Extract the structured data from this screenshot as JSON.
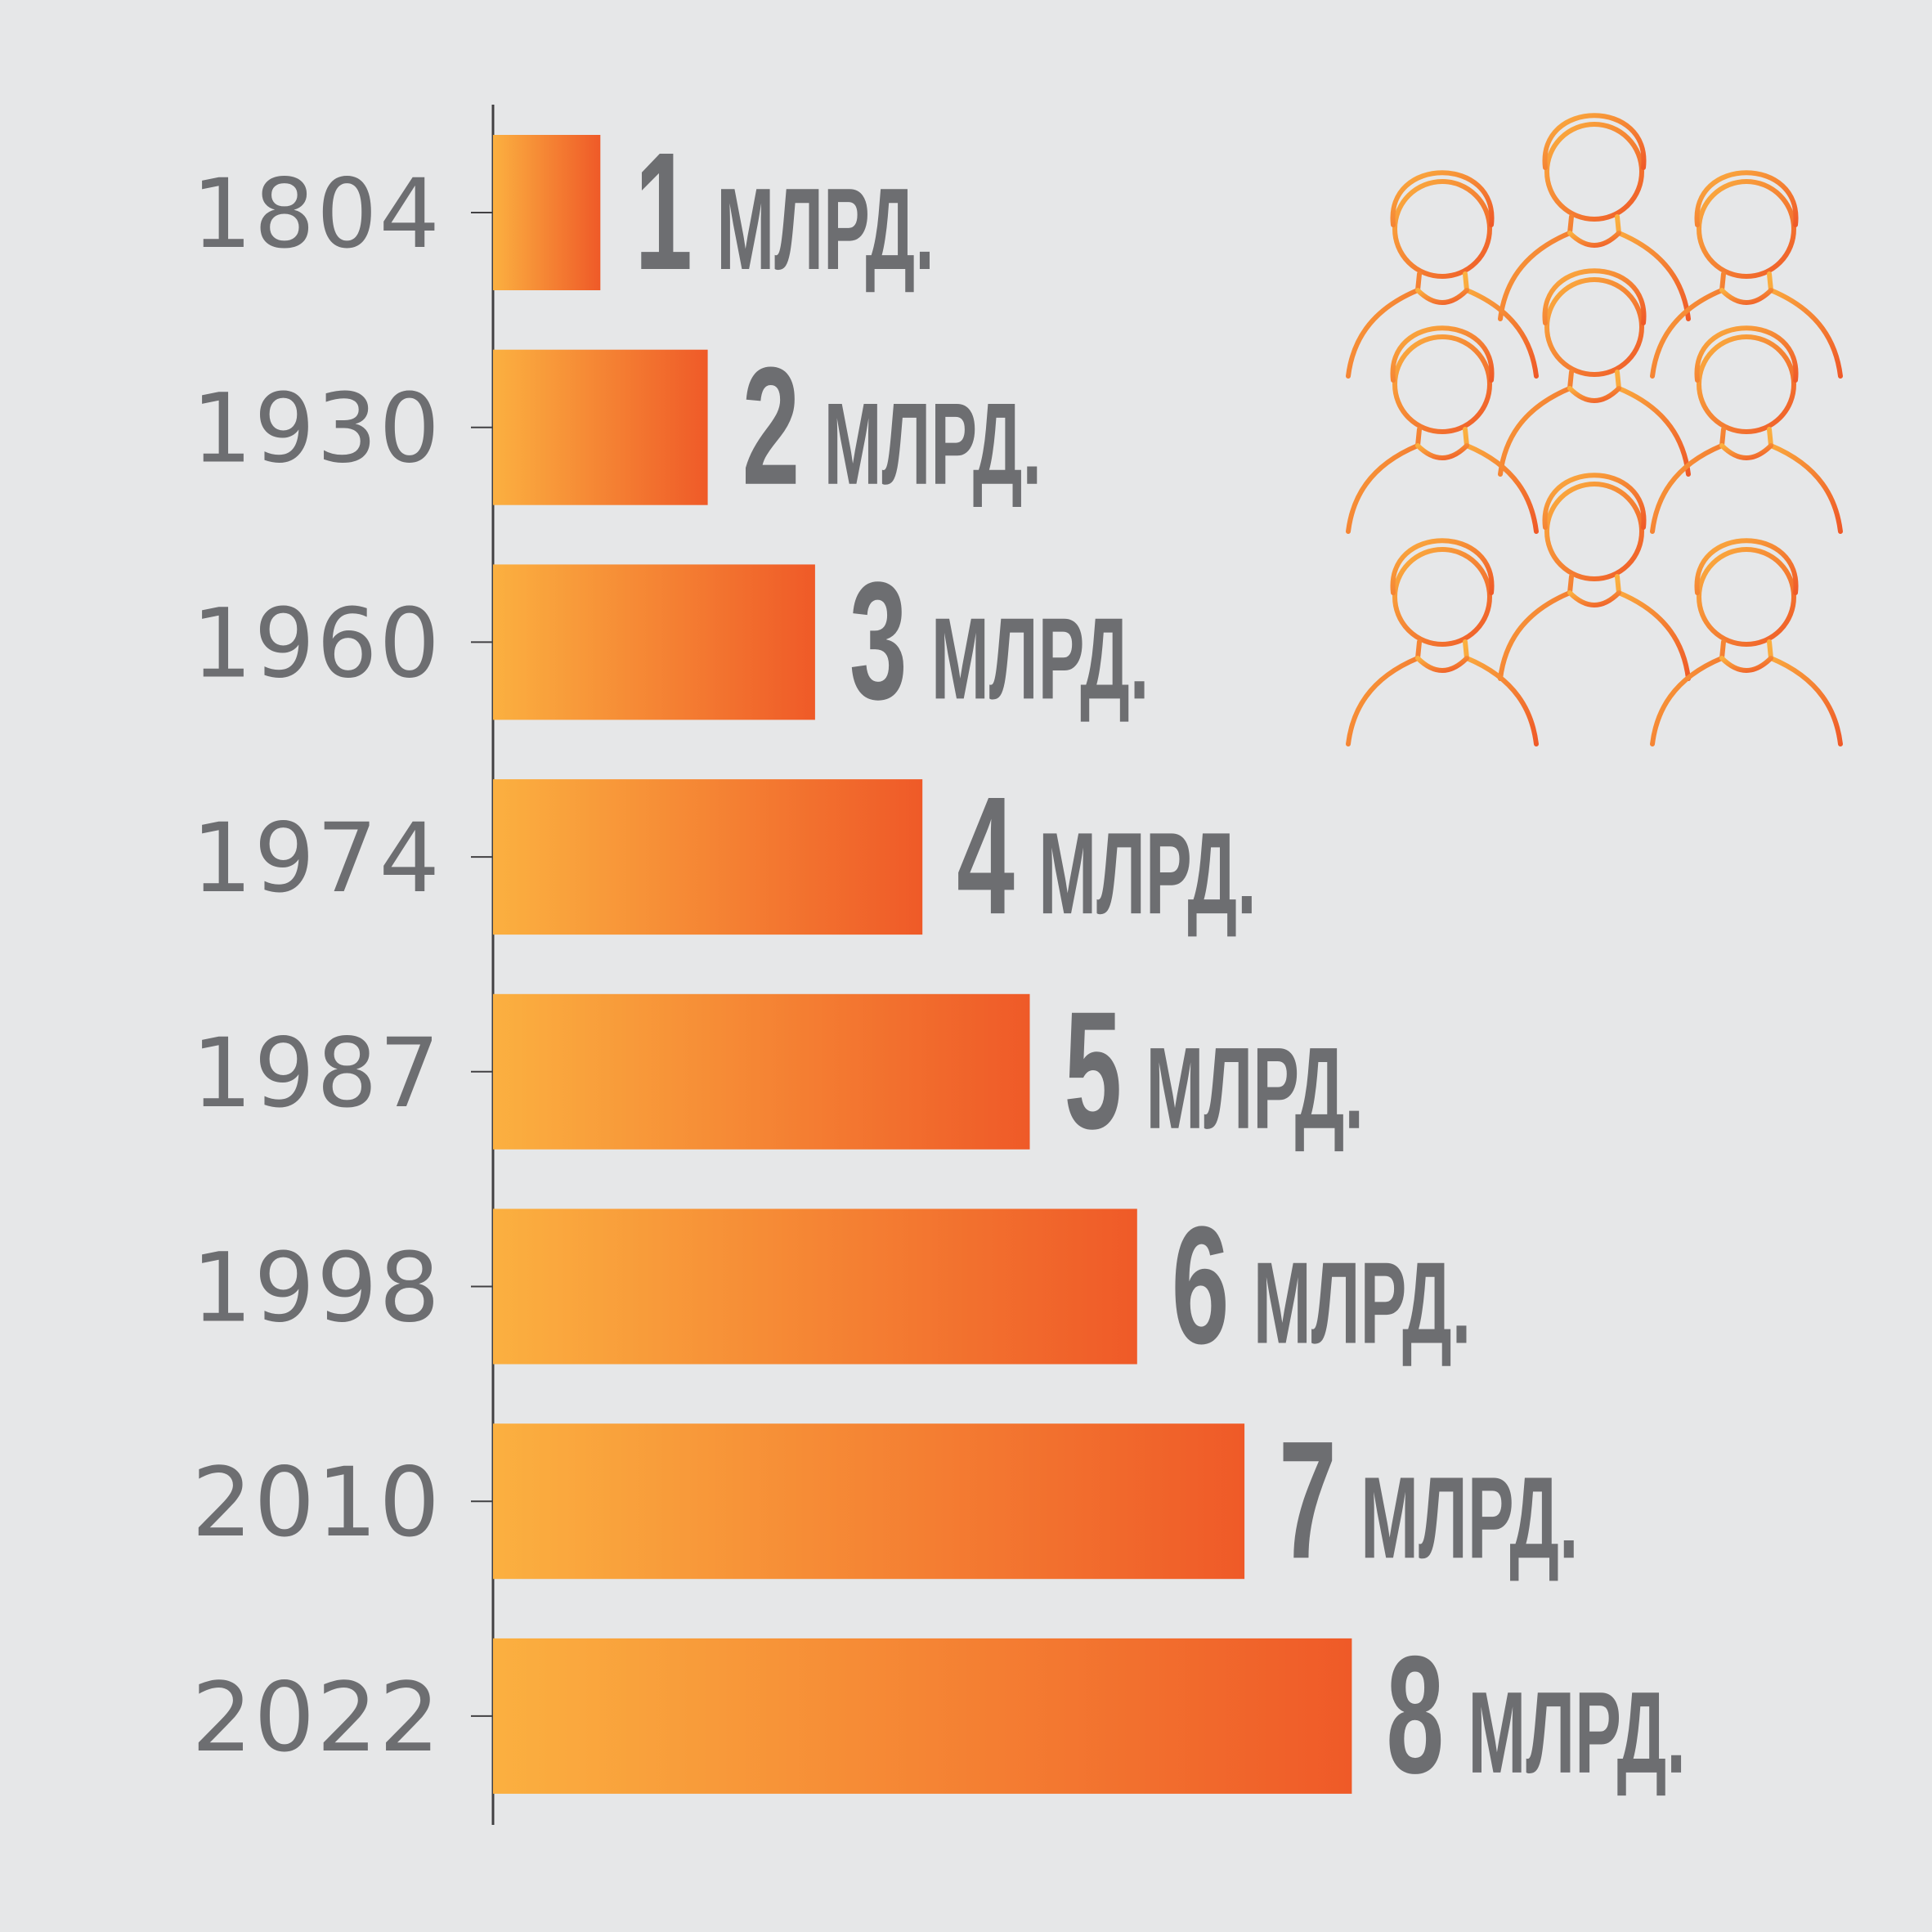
{
  "colors": {
    "background": "#e6e7e8",
    "bar_start": "#fbb040",
    "bar_end": "#ef5a28",
    "text": "#6d6e71",
    "axis": "#414042"
  },
  "icon": "people-crowd-icon",
  "chart_data": {
    "type": "bar",
    "orientation": "horizontal",
    "title": "",
    "xlabel": "",
    "ylabel": "",
    "grid": false,
    "xlim": [
      0,
      8
    ],
    "categories": [
      "1804",
      "1930",
      "1960",
      "1974",
      "1987",
      "1998",
      "2010",
      "2022"
    ],
    "values": [
      1,
      2,
      3,
      4,
      5,
      6,
      7,
      8
    ],
    "value_labels": [
      "1",
      "2",
      "3",
      "4",
      "5",
      "6",
      "7",
      "8"
    ],
    "unit": "МЛРД."
  }
}
